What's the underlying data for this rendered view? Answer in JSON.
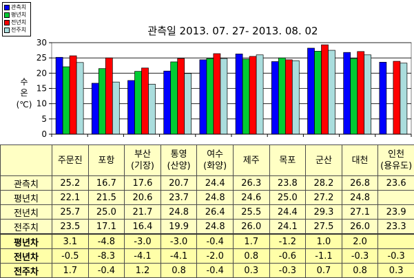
{
  "chart_data": {
    "type": "bar",
    "title": "관측일 2013. 07. 27-  2013. 08. 02",
    "ylabel_lines": [
      "수",
      "온",
      "(℃)"
    ],
    "ylim": [
      0,
      30
    ],
    "yticks": [
      "0",
      "5",
      "10",
      "15",
      "20",
      "25",
      "30"
    ],
    "grid": true,
    "legend_position": "top-left",
    "categories": [
      "주문진",
      "포항",
      "부산(기장)",
      "통영(산양)",
      "여수(화양)",
      "제주",
      "목포",
      "군산",
      "대천",
      "인천(용유도)"
    ],
    "series": [
      {
        "name": "관측치",
        "color": "#0000ff",
        "values": [
          25.2,
          16.7,
          17.6,
          20.7,
          24.4,
          26.3,
          23.8,
          28.2,
          26.8,
          23.6
        ]
      },
      {
        "name": "평년치",
        "color": "#00cc33",
        "values": [
          22.1,
          21.5,
          20.6,
          23.7,
          24.8,
          24.6,
          25.0,
          27.2,
          24.8,
          null
        ]
      },
      {
        "name": "전년치",
        "color": "#ff0000",
        "values": [
          25.7,
          25.0,
          21.7,
          24.8,
          26.4,
          25.5,
          24.4,
          29.3,
          27.1,
          23.9
        ]
      },
      {
        "name": "전주치",
        "color": "#aadddd",
        "values": [
          23.5,
          17.1,
          16.4,
          19.9,
          24.8,
          26.0,
          24.1,
          27.5,
          26.0,
          23.3
        ]
      }
    ]
  },
  "table": {
    "header": [
      [
        "",
        ""
      ],
      [
        "주문진",
        ""
      ],
      [
        "포항",
        ""
      ],
      [
        "부산",
        "(기장)"
      ],
      [
        "통영",
        "(산양)"
      ],
      [
        "여수",
        "(화양)"
      ],
      [
        "제주",
        ""
      ],
      [
        "목포",
        ""
      ],
      [
        "군산",
        ""
      ],
      [
        "대천",
        ""
      ],
      [
        "인천",
        "(용유도)"
      ]
    ],
    "rows": [
      {
        "label": "관측치",
        "cells": [
          "25.2",
          "16.7",
          "17.6",
          "20.7",
          "24.4",
          "26.3",
          "23.8",
          "28.2",
          "26.8",
          "23.6"
        ]
      },
      {
        "label": "평년치",
        "cells": [
          "22.1",
          "21.5",
          "20.6",
          "23.7",
          "24.8",
          "24.6",
          "25.0",
          "27.2",
          "24.8",
          ""
        ]
      },
      {
        "label": "전년치",
        "cells": [
          "25.7",
          "25.0",
          "21.7",
          "24.8",
          "26.4",
          "25.5",
          "24.4",
          "29.3",
          "27.1",
          "23.9"
        ]
      },
      {
        "label": "전주치",
        "cells": [
          "23.5",
          "17.1",
          "16.4",
          "19.9",
          "24.8",
          "26.0",
          "24.1",
          "27.5",
          "26.0",
          "23.3"
        ]
      },
      {
        "label": "평년차",
        "cells": [
          "3.1",
          "-4.8",
          "-3.0",
          "-3.0",
          "-0.4",
          "1.7",
          "-1.2",
          "1.0",
          "2.0",
          ""
        ]
      },
      {
        "label": "전년차",
        "cells": [
          "-0.5",
          "-8.3",
          "-4.1",
          "-4.1",
          "-2.0",
          "0.8",
          "-0.6",
          "-1.1",
          "-0.3",
          "-0.3"
        ]
      },
      {
        "label": "전주차",
        "cells": [
          "1.7",
          "-0.4",
          "1.2",
          "0.8",
          "-0.4",
          "0.3",
          "-0.3",
          "0.7",
          "0.8",
          "0.3"
        ]
      }
    ]
  }
}
